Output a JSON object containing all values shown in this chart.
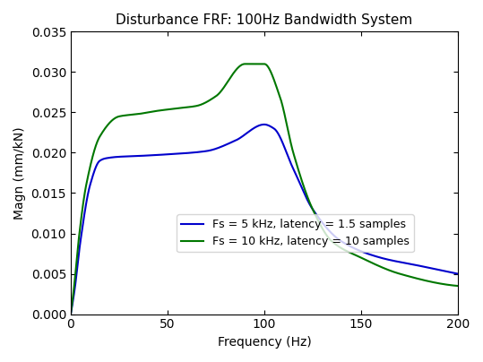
{
  "title": "Disturbance FRF: 100Hz Bandwidth System",
  "xlabel": "Frequency (Hz)",
  "ylabel": "Magn (mm/kN)",
  "xlim": [
    0,
    200
  ],
  "ylim": [
    0,
    0.035
  ],
  "yticks": [
    0,
    0.005,
    0.01,
    0.015,
    0.02,
    0.025,
    0.03,
    0.035
  ],
  "xticks": [
    0,
    50,
    100,
    150,
    200
  ],
  "blue_label": "Fs = 5 kHz, latency = 1.5 samples",
  "green_label": "Fs = 10 kHz, latency = 10 samples",
  "blue_color": "#0000CC",
  "green_color": "#007700",
  "linewidth": 1.5,
  "background_color": "#ffffff",
  "title_fontsize": 11,
  "blue_knots_f": [
    0,
    2,
    5,
    10,
    15,
    18,
    25,
    35,
    50,
    70,
    85,
    100,
    105,
    115,
    125,
    140,
    160,
    180,
    200
  ],
  "blue_knots_m": [
    0,
    0.003,
    0.009,
    0.016,
    0.019,
    0.0193,
    0.0195,
    0.0196,
    0.0198,
    0.0202,
    0.0215,
    0.0235,
    0.023,
    0.018,
    0.013,
    0.009,
    0.007,
    0.006,
    0.005
  ],
  "green_knots_f": [
    0,
    2,
    4,
    8,
    15,
    25,
    35,
    45,
    55,
    65,
    75,
    90,
    100,
    108,
    115,
    125,
    135,
    150,
    170,
    200
  ],
  "green_knots_m": [
    0,
    0.004,
    0.009,
    0.016,
    0.022,
    0.0245,
    0.0248,
    0.0252,
    0.0255,
    0.0258,
    0.027,
    0.031,
    0.031,
    0.027,
    0.02,
    0.013,
    0.009,
    0.007,
    0.005,
    0.0035
  ]
}
